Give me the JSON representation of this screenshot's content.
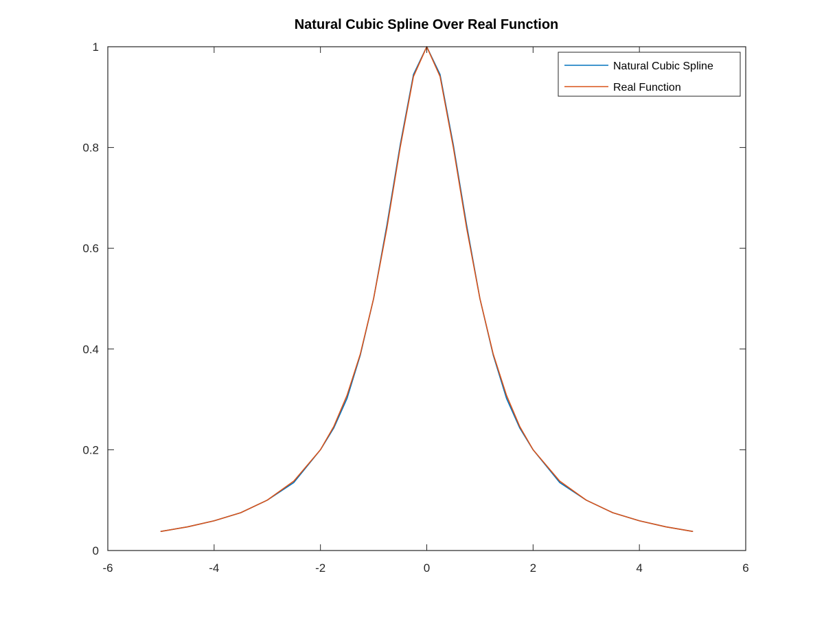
{
  "chart_data": {
    "type": "line",
    "title": "Natural Cubic Spline Over Real Function",
    "xlabel": "",
    "ylabel": "",
    "xlim": [
      -6,
      6
    ],
    "ylim": [
      0,
      1
    ],
    "xticks": [
      -6,
      -4,
      -2,
      0,
      2,
      4,
      6
    ],
    "yticks": [
      0,
      0.2,
      0.4,
      0.6,
      0.8,
      1
    ],
    "xtick_labels": [
      "-6",
      "-4",
      "-2",
      "0",
      "2",
      "4",
      "6"
    ],
    "ytick_labels": [
      "0",
      "0.2",
      "0.4",
      "0.6",
      "0.8",
      "1"
    ],
    "grid": false,
    "legend_position": "top-right",
    "series": [
      {
        "name": "Natural Cubic Spline",
        "color": "#0072BD",
        "x": [
          -5,
          -4.5,
          -4,
          -3.5,
          -3,
          -2.5,
          -2,
          -1.75,
          -1.5,
          -1.25,
          -1,
          -0.75,
          -0.5,
          -0.25,
          0,
          0.25,
          0.5,
          0.75,
          1,
          1.25,
          1.5,
          1.75,
          2,
          2.5,
          3,
          3.5,
          4,
          4.5,
          5
        ],
        "y": [
          0.038,
          0.047,
          0.059,
          0.075,
          0.1,
          0.135,
          0.2,
          0.243,
          0.302,
          0.388,
          0.5,
          0.646,
          0.805,
          0.945,
          1.0,
          0.945,
          0.805,
          0.646,
          0.5,
          0.388,
          0.302,
          0.243,
          0.2,
          0.135,
          0.1,
          0.075,
          0.059,
          0.047,
          0.038
        ]
      },
      {
        "name": "Real Function",
        "color": "#D95319",
        "x": [
          -5,
          -4.5,
          -4,
          -3.5,
          -3,
          -2.5,
          -2,
          -1.75,
          -1.5,
          -1.25,
          -1,
          -0.75,
          -0.5,
          -0.25,
          0,
          0.25,
          0.5,
          0.75,
          1,
          1.25,
          1.5,
          1.75,
          2,
          2.5,
          3,
          3.5,
          4,
          4.5,
          5
        ],
        "y": [
          0.038,
          0.047,
          0.059,
          0.075,
          0.1,
          0.138,
          0.2,
          0.246,
          0.308,
          0.39,
          0.5,
          0.64,
          0.8,
          0.941,
          1.0,
          0.941,
          0.8,
          0.64,
          0.5,
          0.39,
          0.308,
          0.246,
          0.2,
          0.138,
          0.1,
          0.075,
          0.059,
          0.047,
          0.038
        ]
      }
    ]
  }
}
